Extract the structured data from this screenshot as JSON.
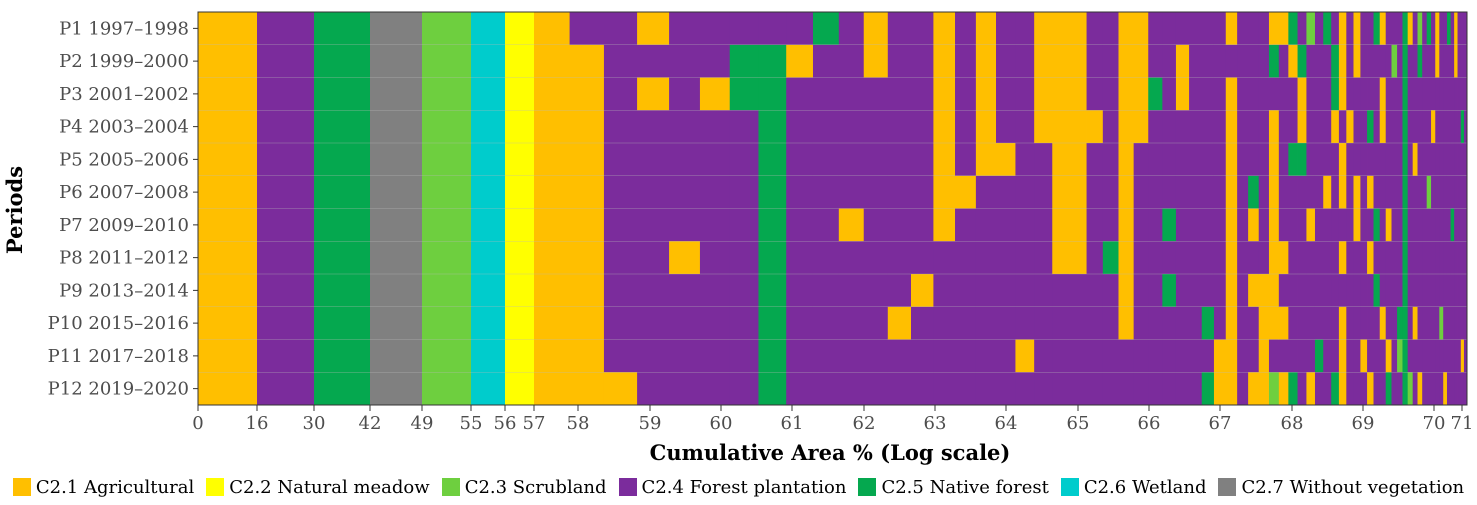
{
  "chart_data": {
    "type": "heatmap",
    "title": "",
    "xlabel": "Cumulative Area % (Log scale)",
    "ylabel": "Periods",
    "x_tick_labels": [
      "0",
      "16",
      "30",
      "42",
      "49",
      "55",
      "56",
      "57",
      "58",
      "59",
      "60",
      "61",
      "62",
      "63",
      "64",
      "65",
      "66",
      "67",
      "68",
      "69",
      "70",
      "71"
    ],
    "periods": [
      "P1 1997–1998",
      "P2 1999–2000",
      "P3 2001–2002",
      "P4 2003–2004",
      "P5 2005–2006",
      "P6 2007–2008",
      "P7 2009–2010",
      "P8 2011–2012",
      "P9 2013–2014",
      "P10 2015–2016",
      "P11 2017–2018",
      "P12 2019–2020"
    ],
    "categories": [
      {
        "code": "C2.1",
        "name": "C2.1 Agricultural",
        "color": "#FFBF00"
      },
      {
        "code": "C2.2",
        "name": "C2.2 Natural meadow",
        "color": "#FFFF00"
      },
      {
        "code": "C2.3",
        "name": "C2.3 Scrubland",
        "color": "#6ECF3F"
      },
      {
        "code": "C2.4",
        "name": "C2.4 Forest plantation",
        "color": "#7B2C9C"
      },
      {
        "code": "C2.5",
        "name": "C2.5 Native forest",
        "color": "#05A84F"
      },
      {
        "code": "C2.6",
        "name": "C2.6 Wetland",
        "color": "#00CCCC"
      },
      {
        "code": "C2.7",
        "name": "C2.7 Without vegetation",
        "color": "#808080"
      }
    ],
    "stable_bands": [
      {
        "from": 0,
        "to": 16,
        "class": "C2.1"
      },
      {
        "from": 16,
        "to": 30,
        "class": "C2.4"
      },
      {
        "from": 30,
        "to": 42,
        "class": "C2.5"
      },
      {
        "from": 42,
        "to": 49,
        "class": "C2.7"
      },
      {
        "from": 49,
        "to": 55,
        "class": "C2.3"
      },
      {
        "from": 55,
        "to": 56,
        "class": "C2.6"
      },
      {
        "from": 56,
        "to": 57,
        "class": "C2.2"
      }
    ],
    "transition_columns": [
      [
        "A",
        "A",
        "A",
        "A",
        "A",
        "A",
        "A",
        "A",
        "A",
        "A",
        "A",
        "A"
      ],
      [
        "F",
        "A",
        "A",
        "A",
        "A",
        "A",
        "A",
        "A",
        "A",
        "A",
        "A",
        "A"
      ],
      [
        "F",
        "F",
        "F",
        "F",
        "F",
        "F",
        "F",
        "F",
        "F",
        "F",
        "F",
        "A"
      ],
      [
        "A",
        "F",
        "A",
        "F",
        "F",
        "F",
        "F",
        "F",
        "F",
        "F",
        "F",
        "F"
      ],
      [
        "F",
        "F",
        "F",
        "F",
        "F",
        "F",
        "F",
        "A",
        "F",
        "F",
        "F",
        "F"
      ],
      [
        "F",
        "F",
        "A",
        "F",
        "F",
        "F",
        "F",
        "F",
        "F",
        "F",
        "F",
        "F"
      ],
      [
        "F",
        "N",
        "N",
        "F",
        "F",
        "F",
        "F",
        "F",
        "F",
        "F",
        "F",
        "F"
      ],
      [
        "F",
        "N",
        "N",
        "N",
        "N",
        "N",
        "N",
        "N",
        "N",
        "N",
        "N",
        "N"
      ],
      [
        "F",
        "A",
        "F",
        "F",
        "F",
        "F",
        "F",
        "F",
        "F",
        "F",
        "F",
        "F"
      ],
      [
        "N",
        "F",
        "F",
        "F",
        "F",
        "F",
        "F",
        "F",
        "F",
        "F",
        "F",
        "F"
      ],
      [
        "F",
        "F",
        "F",
        "F",
        "F",
        "F",
        "A",
        "F",
        "F",
        "F",
        "F",
        "F"
      ],
      [
        "A",
        "A",
        "F",
        "F",
        "F",
        "F",
        "F",
        "F",
        "F",
        "F",
        "F",
        "F"
      ],
      [
        "F",
        "F",
        "F",
        "F",
        "F",
        "F",
        "F",
        "F",
        "F",
        "A",
        "F",
        "F"
      ],
      [
        "F",
        "F",
        "F",
        "F",
        "F",
        "F",
        "F",
        "F",
        "A",
        "F",
        "F",
        "F"
      ],
      [
        "A",
        "A",
        "A",
        "A",
        "A",
        "A",
        "A",
        "F",
        "F",
        "F",
        "F",
        "F"
      ],
      [
        "F",
        "F",
        "F",
        "F",
        "F",
        "A",
        "F",
        "F",
        "F",
        "F",
        "F",
        "F"
      ],
      [
        "A",
        "A",
        "A",
        "A",
        "A",
        "F",
        "F",
        "F",
        "F",
        "F",
        "F",
        "F"
      ],
      [
        "F",
        "F",
        "F",
        "F",
        "A",
        "F",
        "F",
        "F",
        "F",
        "F",
        "F",
        "F"
      ],
      [
        "F",
        "F",
        "F",
        "F",
        "F",
        "F",
        "F",
        "F",
        "F",
        "F",
        "A",
        "F"
      ],
      [
        "A",
        "A",
        "A",
        "A",
        "F",
        "F",
        "F",
        "F",
        "F",
        "F",
        "F",
        "F"
      ],
      [
        "A",
        "A",
        "A",
        "A",
        "A",
        "A",
        "A",
        "A",
        "F",
        "F",
        "F",
        "F"
      ],
      [
        "A",
        "A",
        "A",
        "A",
        "A",
        "A",
        "A",
        "A",
        "F",
        "F",
        "F",
        "F"
      ],
      [
        "F",
        "F",
        "F",
        "A",
        "F",
        "F",
        "F",
        "F",
        "F",
        "F",
        "F",
        "F"
      ],
      [
        "F",
        "F",
        "F",
        "F",
        "F",
        "F",
        "F",
        "N",
        "F",
        "F",
        "F",
        "F"
      ],
      [
        "A",
        "A",
        "A",
        "A",
        "A",
        "A",
        "A",
        "A",
        "A",
        "A",
        "F",
        "F"
      ],
      [
        "A",
        "A",
        "A",
        "A",
        "F",
        "F",
        "F",
        "F",
        "F",
        "F",
        "F",
        "F"
      ],
      [
        "F",
        "F",
        "N",
        "F",
        "F",
        "F",
        "F",
        "F",
        "F",
        "F",
        "F",
        "F"
      ],
      [
        "F",
        "F",
        "F",
        "F",
        "F",
        "F",
        "N",
        "F",
        "N",
        "F",
        "F",
        "F"
      ],
      [
        "F",
        "A",
        "A",
        "F",
        "F",
        "F",
        "F",
        "F",
        "F",
        "F",
        "F",
        "F"
      ],
      [
        "F",
        "F",
        "F",
        "F",
        "F",
        "F",
        "F",
        "F",
        "F",
        "F",
        "F",
        "F"
      ],
      [
        "F",
        "F",
        "F",
        "F",
        "F",
        "F",
        "F",
        "F",
        "F",
        "N",
        "F",
        "N"
      ],
      [
        "F",
        "F",
        "F",
        "F",
        "F",
        "F",
        "F",
        "F",
        "F",
        "F",
        "A",
        "A"
      ],
      [
        "A",
        "F",
        "A",
        "A",
        "A",
        "A",
        "A",
        "A",
        "A",
        "A",
        "A",
        "A"
      ],
      [
        "F",
        "F",
        "F",
        "F",
        "F",
        "F",
        "F",
        "F",
        "F",
        "F",
        "F",
        "F"
      ],
      [
        "F",
        "F",
        "F",
        "F",
        "F",
        "N",
        "A",
        "F",
        "A",
        "F",
        "F",
        "A"
      ],
      [
        "F",
        "F",
        "F",
        "F",
        "F",
        "F",
        "F",
        "F",
        "A",
        "A",
        "A",
        "A"
      ],
      [
        "A",
        "N",
        "F",
        "A",
        "A",
        "A",
        "A",
        "A",
        "A",
        "A",
        "F",
        "S"
      ],
      [
        "A",
        "F",
        "F",
        "F",
        "F",
        "F",
        "F",
        "A",
        "F",
        "A",
        "F",
        "A"
      ],
      [
        "N",
        "A",
        "F",
        "F",
        "N",
        "F",
        "F",
        "F",
        "F",
        "F",
        "F",
        "N"
      ],
      [
        "F",
        "N",
        "A",
        "A",
        "N",
        "F",
        "F",
        "F",
        "F",
        "F",
        "F",
        "F"
      ],
      [
        "S",
        "F",
        "F",
        "F",
        "F",
        "F",
        "A",
        "F",
        "F",
        "F",
        "F",
        "A"
      ],
      [
        "F",
        "F",
        "F",
        "F",
        "F",
        "F",
        "F",
        "F",
        "F",
        "F",
        "N",
        "F"
      ],
      [
        "N",
        "F",
        "F",
        "F",
        "F",
        "A",
        "F",
        "F",
        "F",
        "F",
        "F",
        "F"
      ],
      [
        "F",
        "N",
        "N",
        "A",
        "F",
        "F",
        "F",
        "F",
        "F",
        "F",
        "F",
        "N"
      ],
      [
        "A",
        "A",
        "A",
        "F",
        "A",
        "A",
        "F",
        "A",
        "F",
        "A",
        "A",
        "A"
      ],
      [
        "F",
        "F",
        "F",
        "A",
        "F",
        "F",
        "F",
        "F",
        "F",
        "F",
        "F",
        "F"
      ],
      [
        "A",
        "A",
        "F",
        "F",
        "F",
        "A",
        "A",
        "F",
        "F",
        "F",
        "F",
        "F"
      ],
      [
        "F",
        "F",
        "F",
        "F",
        "F",
        "F",
        "F",
        "F",
        "F",
        "F",
        "A",
        "F"
      ],
      [
        "F",
        "F",
        "F",
        "N",
        "F",
        "A",
        "F",
        "A",
        "F",
        "F",
        "F",
        "A"
      ],
      [
        "N",
        "F",
        "F",
        "F",
        "F",
        "F",
        "N",
        "F",
        "N",
        "F",
        "F",
        "F"
      ],
      [
        "A",
        "F",
        "A",
        "A",
        "F",
        "F",
        "F",
        "F",
        "F",
        "A",
        "F",
        "F"
      ],
      [
        "F",
        "F",
        "F",
        "F",
        "F",
        "F",
        "A",
        "F",
        "F",
        "F",
        "A",
        "N"
      ],
      [
        "F",
        "S",
        "F",
        "F",
        "F",
        "F",
        "F",
        "F",
        "F",
        "F",
        "F",
        "F"
      ],
      [
        "F",
        "F",
        "F",
        "F",
        "F",
        "F",
        "F",
        "F",
        "F",
        "N",
        "S",
        "F"
      ],
      [
        "N",
        "N",
        "N",
        "N",
        "N",
        "N",
        "N",
        "N",
        "N",
        "N",
        "N",
        "N"
      ],
      [
        "A",
        "F",
        "F",
        "F",
        "F",
        "F",
        "F",
        "F",
        "F",
        "F",
        "F",
        "S"
      ],
      [
        "F",
        "F",
        "F",
        "F",
        "A",
        "F",
        "F",
        "F",
        "F",
        "A",
        "F",
        "F"
      ],
      [
        "S",
        "N",
        "F",
        "F",
        "F",
        "F",
        "F",
        "F",
        "F",
        "F",
        "F",
        "A"
      ],
      [
        "F",
        "F",
        "F",
        "F",
        "F",
        "F",
        "F",
        "F",
        "F",
        "F",
        "F",
        "F"
      ],
      [
        "N",
        "F",
        "F",
        "F",
        "F",
        "S",
        "F",
        "F",
        "F",
        "F",
        "F",
        "F"
      ],
      [
        "F",
        "F",
        "F",
        "A",
        "F",
        "F",
        "F",
        "F",
        "F",
        "F",
        "F",
        "F"
      ],
      [
        "A",
        "A",
        "F",
        "F",
        "F",
        "F",
        "F",
        "F",
        "F",
        "F",
        "F",
        "F"
      ],
      [
        "F",
        "F",
        "F",
        "F",
        "F",
        "F",
        "F",
        "F",
        "F",
        "S",
        "F",
        "F"
      ],
      [
        "F",
        "F",
        "F",
        "F",
        "F",
        "F",
        "F",
        "F",
        "F",
        "F",
        "F",
        "A"
      ],
      [
        "N",
        "F",
        "F",
        "F",
        "F",
        "F",
        "F",
        "F",
        "F",
        "F",
        "F",
        "F"
      ],
      [
        "F",
        "F",
        "F",
        "F",
        "F",
        "F",
        "N",
        "F",
        "F",
        "F",
        "F",
        "F"
      ],
      [
        "A",
        "A",
        "F",
        "F",
        "F",
        "F",
        "F",
        "F",
        "F",
        "F",
        "F",
        "F"
      ],
      [
        "F",
        "F",
        "F",
        "F",
        "F",
        "F",
        "F",
        "F",
        "F",
        "F",
        "F",
        "F"
      ],
      [
        "F",
        "F",
        "F",
        "N",
        "F",
        "F",
        "F",
        "F",
        "F",
        "F",
        "A",
        "F"
      ],
      [
        "F",
        "F",
        "F",
        "F",
        "F",
        "F",
        "F",
        "F",
        "F",
        "F",
        "F",
        "F"
      ]
    ]
  }
}
